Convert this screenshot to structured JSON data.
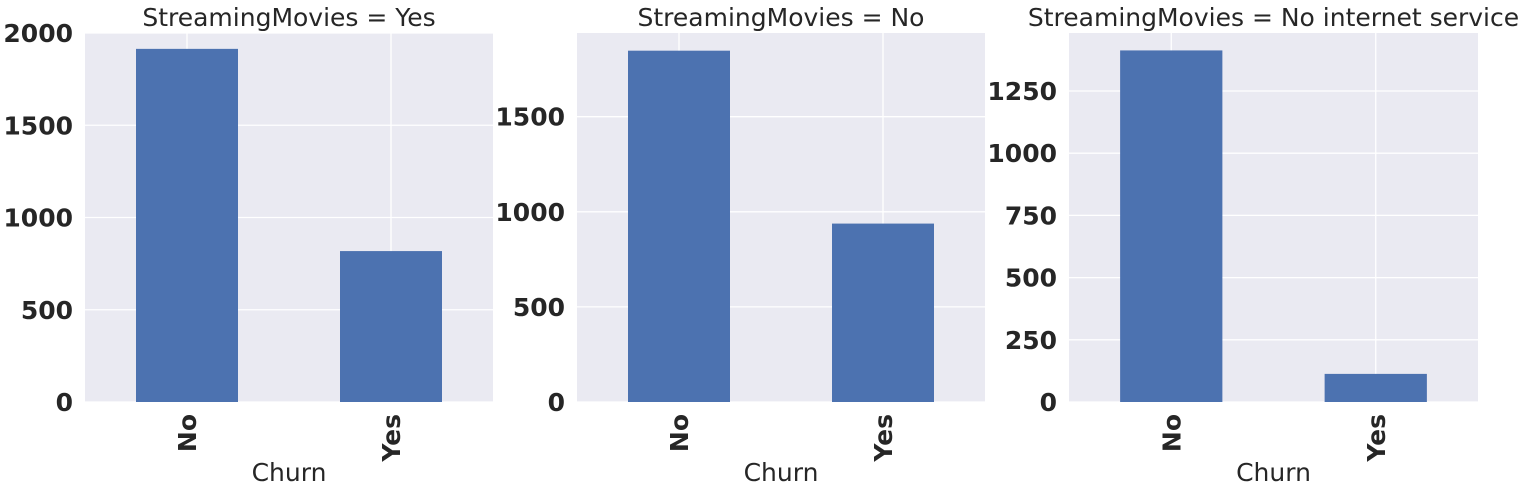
{
  "chart_data": [
    {
      "type": "bar",
      "title": "StreamingMovies = Yes",
      "xlabel": "Churn",
      "ylabel": "",
      "categories": [
        "No",
        "Yes"
      ],
      "values": [
        1914,
        818
      ],
      "ylim": [
        0,
        2000
      ],
      "yticks": [
        "0",
        "500",
        "1000",
        "1500",
        "2000"
      ],
      "grid": true
    },
    {
      "type": "bar",
      "title": "StreamingMovies = No",
      "xlabel": "Churn",
      "ylabel": "",
      "categories": [
        "No",
        "Yes"
      ],
      "values": [
        1847,
        938
      ],
      "ylim": [
        0,
        1940
      ],
      "yticks": [
        "0",
        "500",
        "1000",
        "1500"
      ],
      "grid": true
    },
    {
      "type": "bar",
      "title": "StreamingMovies = No internet service",
      "xlabel": "Churn",
      "ylabel": "",
      "categories": [
        "No",
        "Yes"
      ],
      "values": [
        1413,
        113
      ],
      "ylim": [
        0,
        1483
      ],
      "yticks": [
        "0",
        "250",
        "500",
        "750",
        "1000",
        "1250"
      ],
      "grid": true
    }
  ],
  "colors": {
    "bar": "#4c72b0",
    "plot_background": "#eaeaf2",
    "grid": "#ffffff",
    "text": "#262626"
  }
}
